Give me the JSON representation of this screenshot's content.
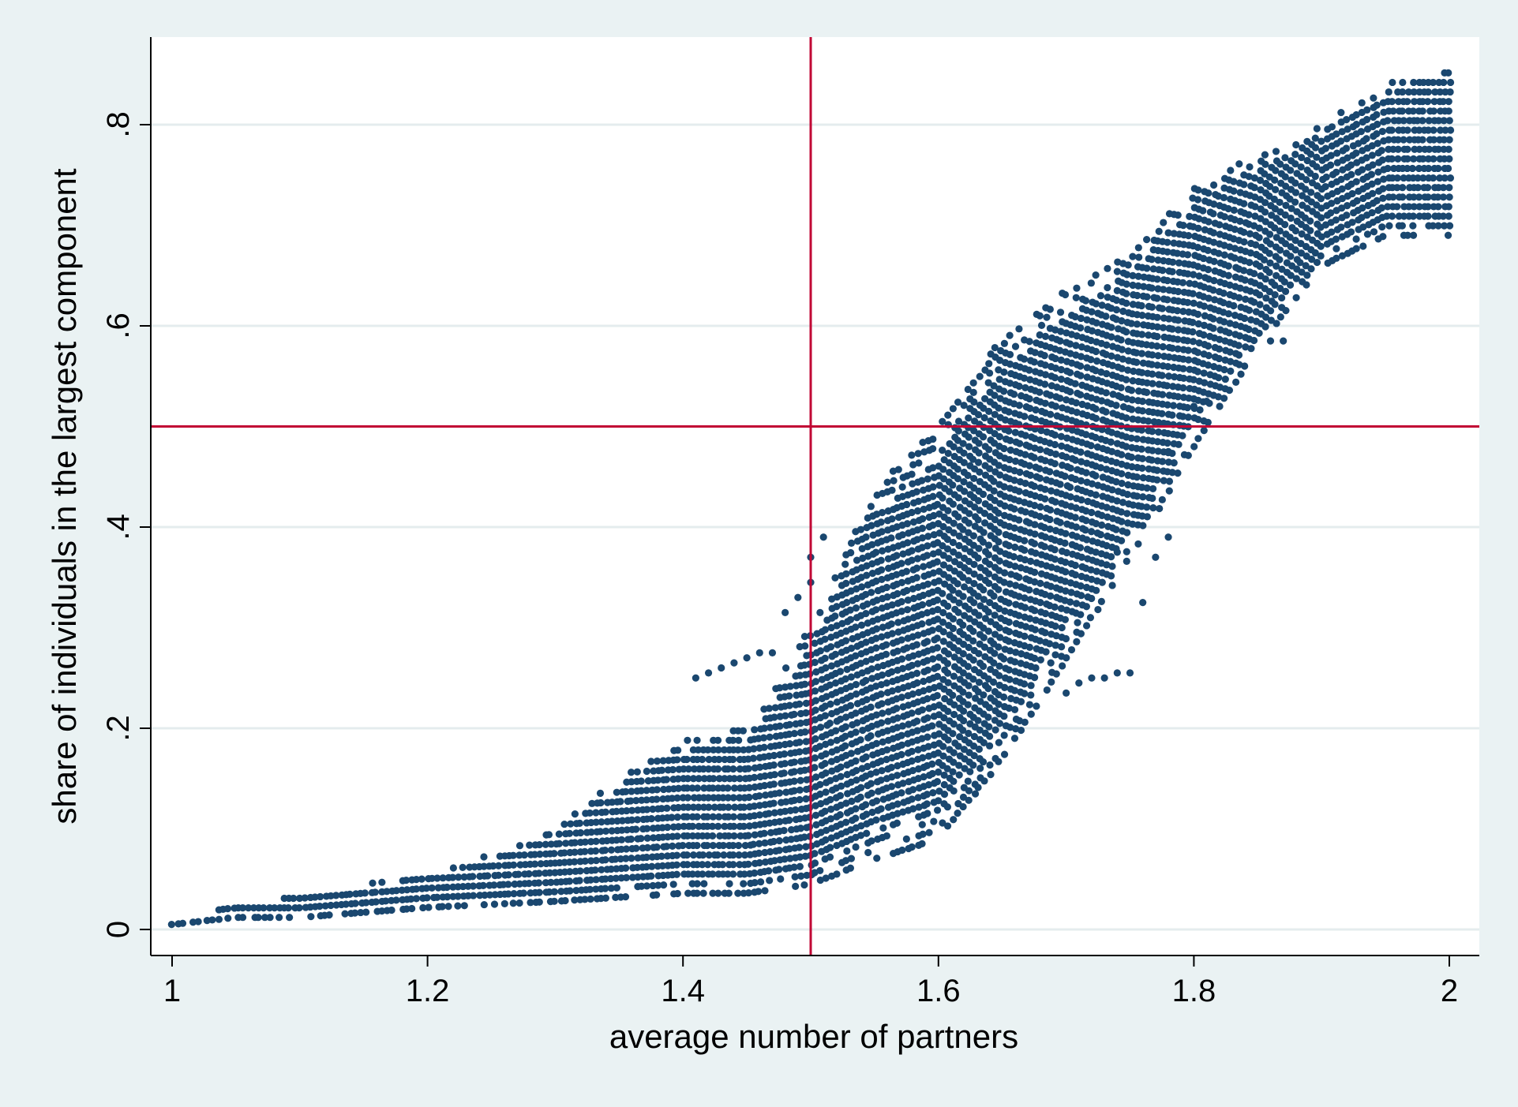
{
  "chart_data": {
    "type": "scatter",
    "title": "",
    "xlabel": "average number of partners",
    "ylabel": "share of individuals in the largest component",
    "xlim": [
      0.965,
      2.05
    ],
    "ylim": [
      -0.028,
      0.88
    ],
    "x_ticks": [
      1,
      1.2,
      1.4,
      1.6,
      1.8,
      2
    ],
    "x_tick_labels": [
      "1",
      "1.2",
      "1.4",
      "1.6",
      "1.8",
      "2"
    ],
    "y_ticks": [
      0,
      0.2,
      0.4,
      0.6,
      0.8
    ],
    "y_tick_labels": [
      "0",
      ".2",
      ".4",
      ".6",
      ".8"
    ],
    "grid": "horizontal",
    "reference_lines": {
      "x": 1.5,
      "y": 0.5
    },
    "colors": {
      "points": "#1a476f",
      "reference_line": "#c10534",
      "plot_background": "#ffffff",
      "figure_background": "#eaf2f3",
      "grid": "#e4ecee"
    },
    "point_cloud": {
      "description_profile": [
        {
          "x": 1.0,
          "y_min": 0.005,
          "y_max": 0.008
        },
        {
          "x": 1.05,
          "y_min": 0.012,
          "y_max": 0.026
        },
        {
          "x": 1.1,
          "y_min": 0.012,
          "y_max": 0.035
        },
        {
          "x": 1.15,
          "y_min": 0.017,
          "y_max": 0.045
        },
        {
          "x": 1.2,
          "y_min": 0.022,
          "y_max": 0.055
        },
        {
          "x": 1.25,
          "y_min": 0.025,
          "y_max": 0.075
        },
        {
          "x": 1.3,
          "y_min": 0.028,
          "y_max": 0.1
        },
        {
          "x": 1.35,
          "y_min": 0.032,
          "y_max": 0.15
        },
        {
          "x": 1.4,
          "y_min": 0.036,
          "y_max": 0.19
        },
        {
          "x": 1.45,
          "y_min": 0.036,
          "y_max": 0.2
        },
        {
          "x": 1.5,
          "y_min": 0.045,
          "y_max": 0.3
        },
        {
          "x": 1.55,
          "y_min": 0.07,
          "y_max": 0.44
        },
        {
          "x": 1.6,
          "y_min": 0.09,
          "y_max": 0.5
        },
        {
          "x": 1.65,
          "y_min": 0.17,
          "y_max": 0.59
        },
        {
          "x": 1.7,
          "y_min": 0.27,
          "y_max": 0.64
        },
        {
          "x": 1.75,
          "y_min": 0.37,
          "y_max": 0.67
        },
        {
          "x": 1.8,
          "y_min": 0.48,
          "y_max": 0.74
        },
        {
          "x": 1.85,
          "y_min": 0.58,
          "y_max": 0.77
        },
        {
          "x": 1.9,
          "y_min": 0.66,
          "y_max": 0.8
        },
        {
          "x": 1.95,
          "y_min": 0.69,
          "y_max": 0.84
        },
        {
          "x": 2.0,
          "y_min": 0.69,
          "y_max": 0.86
        }
      ],
      "outliers": [
        {
          "x": 1.41,
          "y": 0.25
        },
        {
          "x": 1.42,
          "y": 0.255
        },
        {
          "x": 1.43,
          "y": 0.26
        },
        {
          "x": 1.44,
          "y": 0.265
        },
        {
          "x": 1.45,
          "y": 0.27
        },
        {
          "x": 1.46,
          "y": 0.275
        },
        {
          "x": 1.47,
          "y": 0.275
        },
        {
          "x": 1.48,
          "y": 0.315
        },
        {
          "x": 1.49,
          "y": 0.33
        },
        {
          "x": 1.5,
          "y": 0.345
        },
        {
          "x": 1.5,
          "y": 0.37
        },
        {
          "x": 1.51,
          "y": 0.39
        },
        {
          "x": 1.77,
          "y": 0.37
        },
        {
          "x": 1.78,
          "y": 0.39
        },
        {
          "x": 1.76,
          "y": 0.325
        },
        {
          "x": 1.8,
          "y": 0.52
        },
        {
          "x": 1.81,
          "y": 0.525
        },
        {
          "x": 1.78,
          "y": 0.475
        },
        {
          "x": 1.74,
          "y": 0.255
        },
        {
          "x": 1.75,
          "y": 0.255
        },
        {
          "x": 1.73,
          "y": 0.25
        },
        {
          "x": 1.72,
          "y": 0.25
        },
        {
          "x": 1.71,
          "y": 0.245
        },
        {
          "x": 1.7,
          "y": 0.235
        },
        {
          "x": 1.87,
          "y": 0.585
        },
        {
          "x": 1.86,
          "y": 0.585
        },
        {
          "x": 1.74,
          "y": 0.375
        }
      ]
    }
  }
}
